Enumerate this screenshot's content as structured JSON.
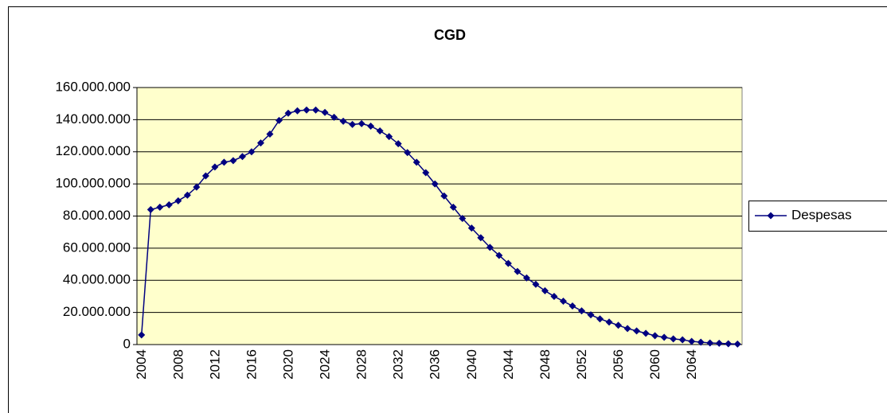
{
  "chart_data": {
    "type": "line",
    "title": "CGD",
    "categories": [
      "2004",
      null,
      null,
      null,
      "2008",
      null,
      null,
      null,
      "2012",
      null,
      null,
      null,
      "2016",
      null,
      null,
      null,
      "2020",
      null,
      null,
      null,
      "2024",
      null,
      null,
      null,
      "2028",
      null,
      null,
      null,
      "2032",
      null,
      null,
      null,
      "2036",
      null,
      null,
      null,
      "2040",
      null,
      null,
      null,
      "2044",
      null,
      null,
      null,
      "2048",
      null,
      null,
      null,
      "2052",
      null,
      null,
      null,
      "2056",
      null,
      null,
      null,
      "2060",
      null,
      null,
      null,
      "2064",
      null,
      null,
      null,
      null,
      null
    ],
    "series": [
      {
        "name": "Despesas",
        "color": "#000080",
        "values": [
          6000000,
          84000000,
          85500000,
          87000000,
          89500000,
          93000000,
          98000000,
          105000000,
          110500000,
          113500000,
          114500000,
          117000000,
          120000000,
          125500000,
          131000000,
          139500000,
          144000000,
          145500000,
          146000000,
          146000000,
          144500000,
          141500000,
          139000000,
          137000000,
          137500000,
          136000000,
          133000000,
          129500000,
          125000000,
          119500000,
          113500000,
          107000000,
          100000000,
          92500000,
          85500000,
          78500000,
          72500000,
          66500000,
          60500000,
          55500000,
          50500000,
          45500000,
          41500000,
          37500000,
          33500000,
          30000000,
          27000000,
          24000000,
          21000000,
          18500000,
          16000000,
          14000000,
          12000000,
          10000000,
          8500000,
          7000000,
          5500000,
          4500000,
          3500000,
          3000000,
          2000000,
          1500000,
          1000000,
          800000,
          500000,
          300000
        ]
      }
    ],
    "ylim": [
      0,
      160000000
    ],
    "yticks": [
      0,
      {
        "value": 20000000,
        "label": "20.000.000"
      },
      {
        "value": 40000000,
        "label": "40.000.000"
      },
      {
        "value": 60000000,
        "label": "60.000.000"
      },
      {
        "value": 80000000,
        "label": "80.000.000"
      },
      {
        "value": 100000000,
        "label": "100.000.000"
      },
      {
        "value": 120000000,
        "label": "120.000.000"
      },
      {
        "value": 140000000,
        "label": "140.000.000"
      },
      {
        "value": 160000000,
        "label": "160.000.000"
      }
    ],
    "grid": true,
    "legend": "right",
    "plot_background": "#FFFFCC"
  }
}
